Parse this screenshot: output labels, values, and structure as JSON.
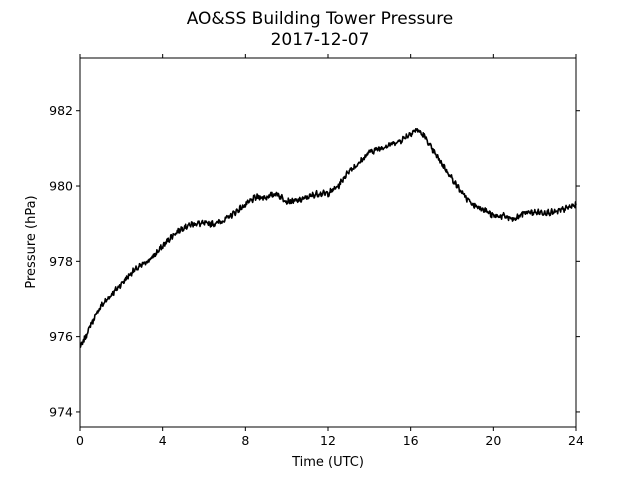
{
  "chart_data": {
    "type": "line",
    "title": "AO&SS Building Tower Pressure",
    "subtitle": "2017-12-07",
    "xlabel": "Time (UTC)",
    "ylabel": "Pressure (hPa)",
    "xlim": [
      0,
      24
    ],
    "ylim": [
      973.6,
      983.4
    ],
    "xticks": [
      0,
      4,
      8,
      12,
      16,
      20,
      24
    ],
    "yticks": [
      974,
      976,
      978,
      980,
      982
    ],
    "grid": false,
    "line_color": "#000000",
    "series": [
      {
        "x": [
          0,
          0.2,
          0.5,
          1,
          1.5,
          2,
          2.5,
          3,
          3.5,
          4,
          4.5,
          5,
          5.5,
          6,
          6.5,
          7,
          7.5,
          8,
          8.5,
          9,
          9.5,
          10,
          10.5,
          11,
          11.5,
          12,
          12.5,
          13,
          13.5,
          14,
          14.5,
          15,
          15.5,
          16,
          16.3,
          16.7,
          17,
          17.5,
          18,
          18.5,
          19,
          19.5,
          20,
          20.5,
          21,
          21.5,
          22,
          22.5,
          23,
          23.5,
          24
        ],
        "values": [
          975.7,
          975.9,
          976.3,
          976.8,
          977.1,
          977.4,
          977.7,
          977.9,
          978.1,
          978.4,
          978.7,
          978.9,
          979.0,
          979.0,
          979.0,
          979.1,
          979.3,
          979.5,
          979.7,
          979.7,
          979.8,
          979.6,
          979.6,
          979.7,
          979.8,
          979.8,
          980.0,
          980.4,
          980.6,
          980.9,
          981.0,
          981.1,
          981.2,
          981.4,
          981.5,
          981.3,
          981.0,
          980.6,
          980.2,
          979.8,
          979.5,
          979.4,
          979.2,
          979.2,
          979.1,
          979.3,
          979.3,
          979.3,
          979.3,
          979.4,
          979.5
        ]
      }
    ]
  }
}
